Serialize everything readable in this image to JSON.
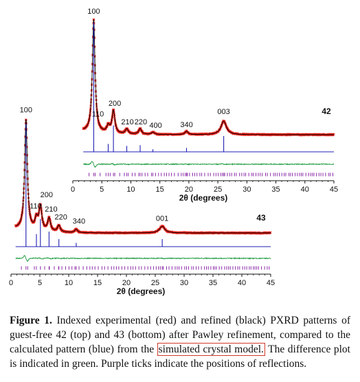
{
  "chart_data": [
    {
      "type": "line",
      "label": "42",
      "xlabel": "2θ (degrees)",
      "xlim": [
        0,
        45
      ],
      "xticks": [
        0,
        5,
        10,
        15,
        20,
        25,
        30,
        35,
        40,
        45
      ],
      "peaks": [
        {
          "hkl": "100",
          "x": 3.6,
          "height": 1.0
        },
        {
          "hkl": "200",
          "x": 7.0,
          "height": 0.2
        },
        {
          "hkl": "110",
          "x": 6.1,
          "height": 0.06
        },
        {
          "hkl": "210",
          "x": 9.3,
          "height": 0.045
        },
        {
          "hkl": "220",
          "x": 11.6,
          "height": 0.05
        },
        {
          "hkl": "400",
          "x": 13.8,
          "height": 0.02
        },
        {
          "hkl": "340",
          "x": 19.6,
          "height": 0.03
        },
        {
          "hkl": "003",
          "x": 26.0,
          "height": 0.12
        }
      ],
      "series": [
        {
          "name": "experimental",
          "color": "#e8231b"
        },
        {
          "name": "refined",
          "color": "#000000"
        },
        {
          "name": "calculated",
          "color": "#1f1fb4"
        },
        {
          "name": "difference",
          "color": "#1a9a3c"
        },
        {
          "name": "reflections",
          "color": "#8a2aa8"
        }
      ]
    },
    {
      "type": "line",
      "label": "43",
      "xlabel": "2θ (degrees)",
      "xlim": [
        0,
        45
      ],
      "xticks": [
        0,
        5,
        10,
        15,
        20,
        25,
        30,
        35,
        40,
        45
      ],
      "peaks": [
        {
          "hkl": "100",
          "x": 2.6,
          "height": 1.0
        },
        {
          "hkl": "110",
          "x": 4.4,
          "height": 0.1
        },
        {
          "hkl": "200",
          "x": 5.1,
          "height": 0.22
        },
        {
          "hkl": "210",
          "x": 6.6,
          "height": 0.12
        },
        {
          "hkl": "220",
          "x": 8.3,
          "height": 0.06
        },
        {
          "hkl": "340",
          "x": 11.3,
          "height": 0.03
        },
        {
          "hkl": "001",
          "x": 26.2,
          "height": 0.06
        }
      ],
      "series": [
        {
          "name": "experimental",
          "color": "#e8231b"
        },
        {
          "name": "refined",
          "color": "#000000"
        },
        {
          "name": "calculated",
          "color": "#1f1fb4"
        },
        {
          "name": "difference",
          "color": "#1a9a3c"
        },
        {
          "name": "reflections",
          "color": "#8a2aa8"
        }
      ]
    }
  ],
  "caption": {
    "lead": "Figure 1.",
    "part1": " Indexed experimental (red) and refined (black) PXRD patterns of guest-free 42 (top) and 43 (bottom) after Pawley refinement, compared to the calculated pattern (blue) from the ",
    "boxed": "simulated crystal model.",
    "part2": " The difference plot is indicated in green. Purple ticks indicate the positions of reflections."
  }
}
